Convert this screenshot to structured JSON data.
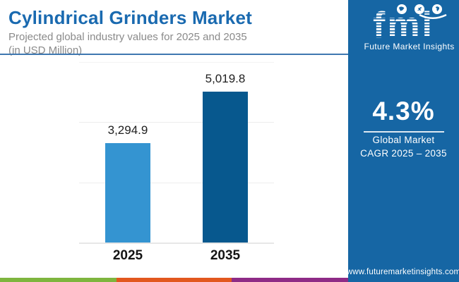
{
  "header": {
    "title": "Cylindrical Grinders Market",
    "subtitle_line1": "Projected global industry values for 2025 and 2035",
    "subtitle_line2": "(in USD Million)"
  },
  "chart_data": {
    "type": "bar",
    "title": "Cylindrical Grinders Market",
    "xlabel": "",
    "ylabel": "USD Million",
    "categories": [
      "2025",
      "2035"
    ],
    "values": [
      3294.9,
      5019.8
    ],
    "value_labels": [
      "3,294.9",
      "5,019.8"
    ],
    "bar_colors": [
      "#3494d1",
      "#07588e"
    ],
    "ylim": [
      0,
      6000
    ],
    "gridline_interval": 2000,
    "grid": true,
    "legend": false
  },
  "sidebar": {
    "brand": {
      "logo_text": "fmi",
      "brand_name": "Future Market Insights"
    },
    "cagr_value": "4.3%",
    "cagr_label_line1": "Global Market",
    "cagr_label_line2": "CAGR 2025 – 2035",
    "website": "www.futuremarketinsights.com"
  },
  "colors": {
    "title": "#1a6ab0",
    "subtitle": "#8a8a8a",
    "header_rule": "#3f78b0",
    "sidebar_bg": "#1666a4",
    "stripe": [
      "#7eb53e",
      "#e2571e",
      "#8e2b86"
    ]
  }
}
